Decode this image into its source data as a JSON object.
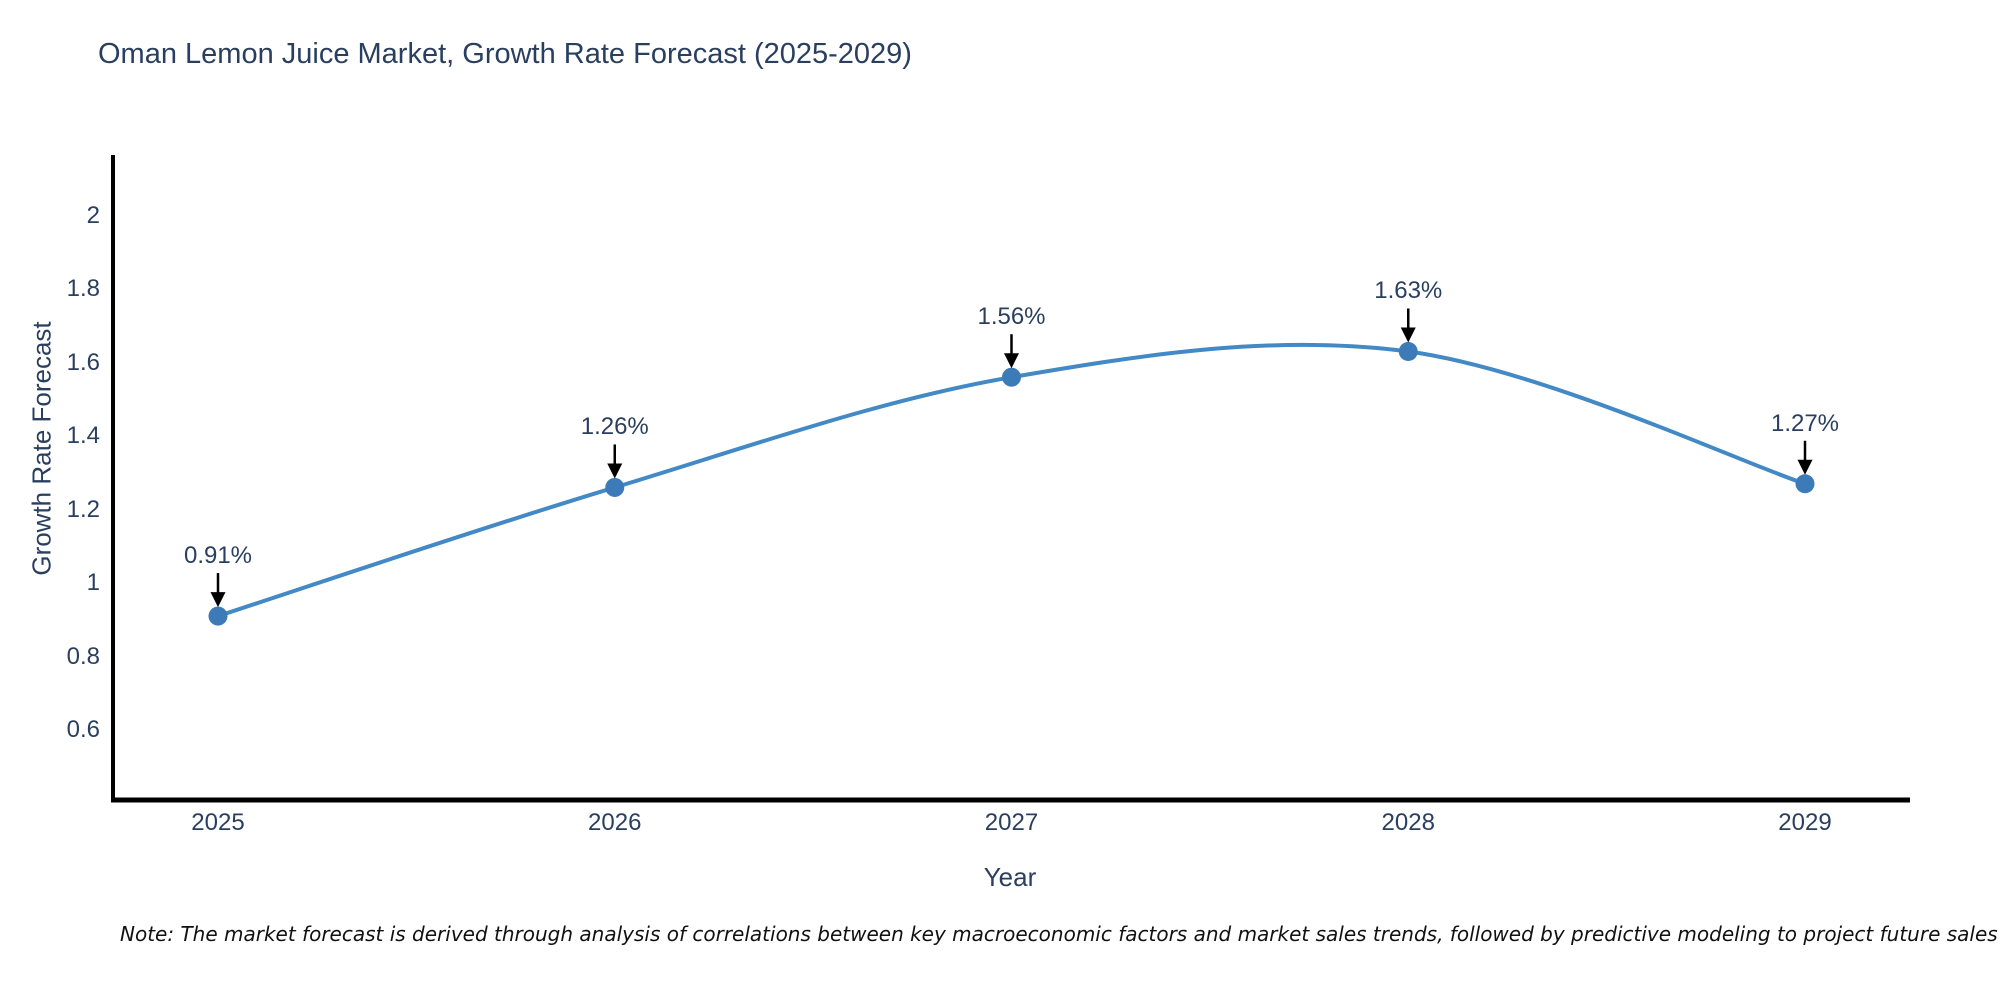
{
  "title": "Oman Lemon Juice Market, Growth Rate Forecast (2025-2029)",
  "note": "Note: The market forecast is derived through analysis of correlations between key macroeconomic factors and market sales trends, followed by predictive modeling to project future sales",
  "chart_data": {
    "type": "line",
    "title": "Oman Lemon Juice Market, Growth Rate Forecast (2025-2029)",
    "xlabel": "Year",
    "ylabel": "Growth Rate Forecast",
    "x": [
      "2025",
      "2026",
      "2027",
      "2028",
      "2029"
    ],
    "series": [
      {
        "name": "Growth Rate Forecast",
        "values": [
          0.91,
          1.26,
          1.56,
          1.63,
          1.27
        ],
        "point_labels": [
          "0.91%",
          "1.26%",
          "1.56%",
          "1.63%",
          "1.27%"
        ]
      }
    ],
    "line_shape": "spline",
    "markers": true,
    "annotations_arrows": true,
    "yticks": [
      0.6,
      0.8,
      1,
      1.2,
      1.4,
      1.6,
      1.8,
      2
    ],
    "ytick_labels": [
      "0.6",
      "0.8",
      "1",
      "1.2",
      "1.4",
      "1.6",
      "1.8",
      "2"
    ],
    "ylim": [
      0.41,
      2.17
    ],
    "grid": false,
    "legend": false,
    "colors": {
      "line": "#4389c5",
      "marker": "#3d7bb8",
      "arrow": "#000000",
      "axis": "#000000",
      "text": "#2a3f5f",
      "background": "#ffffff"
    }
  }
}
